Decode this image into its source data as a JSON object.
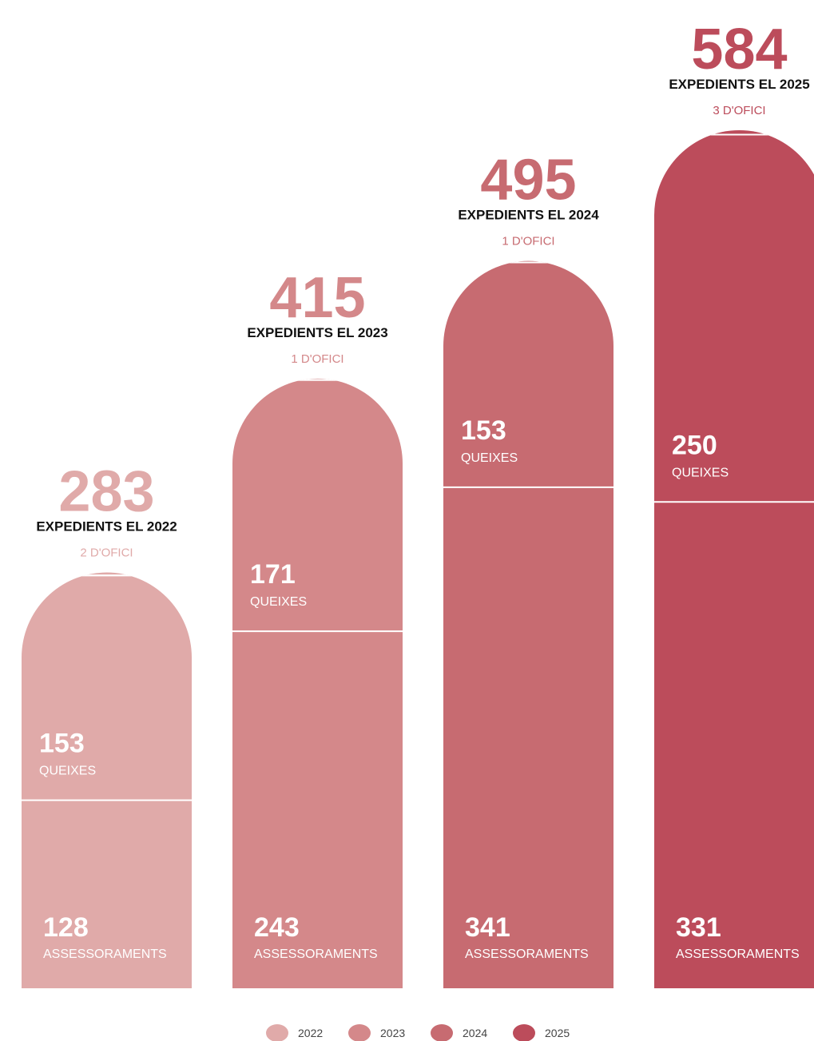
{
  "chart_data": {
    "type": "rounded-stacked-bar",
    "categories": [
      "2022",
      "2023",
      "2024",
      "2025"
    ],
    "colors": [
      "#e0aaa9",
      "#d4888a",
      "#c76b71",
      "#bc4c5b"
    ],
    "totals": [
      283,
      415,
      495,
      584
    ],
    "total_labels": [
      "EXPEDIENTS EL 2022",
      "EXPEDIENTS EL 2023",
      "EXPEDIENTS EL 2024",
      "EXPEDIENTS EL 2025"
    ],
    "series": [
      {
        "name": "ASSESSORAMENTS",
        "values": [
          128,
          243,
          341,
          331
        ]
      },
      {
        "name": "QUEIXES",
        "values": [
          153,
          171,
          153,
          250
        ]
      },
      {
        "values": [
          2,
          1,
          1,
          3
        ],
        "value_labels": [
          "2 D'OFICI",
          "1 D'OFICI",
          "1 D'OFICI",
          "3 D'OFICI"
        ]
      }
    ],
    "legend": "bottom"
  }
}
